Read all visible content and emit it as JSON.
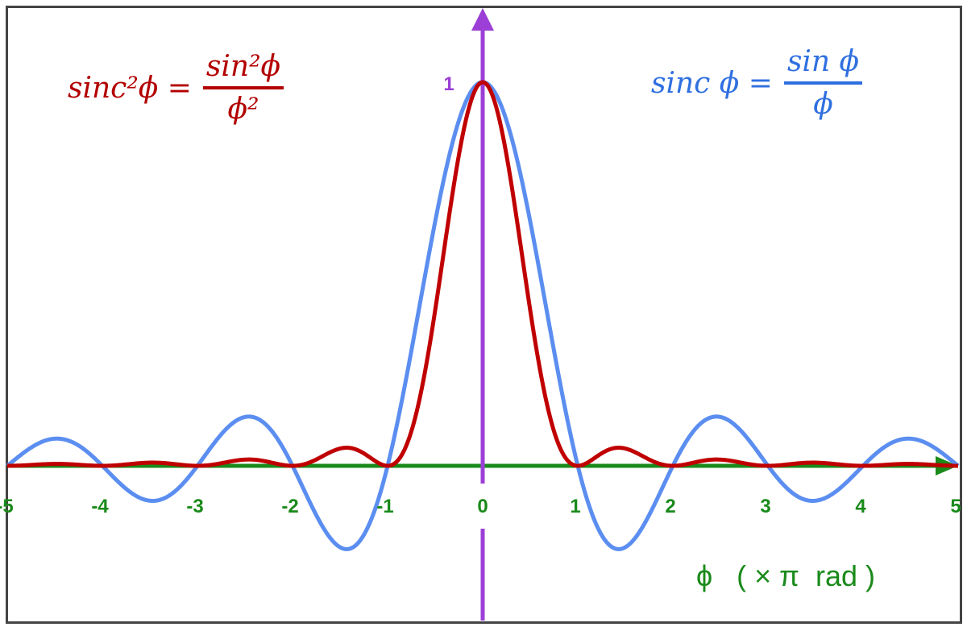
{
  "chart_data": {
    "type": "line",
    "title": "",
    "xlabel": "ϕ   ( × π  rad )",
    "ylabel": "",
    "xlim": [
      -5,
      5
    ],
    "ylim": [
      -0.25,
      1.0
    ],
    "x_ticks": [
      "-5",
      "-4",
      "-3",
      "-2",
      "-1",
      "0",
      "1",
      "2",
      "3",
      "4",
      "5"
    ],
    "y_ticks": [
      "1"
    ],
    "grid": false,
    "series": [
      {
        "name": "sinc ϕ = sin ϕ / ϕ",
        "function": "sin(πx)/(πx)",
        "color": "#5b8ef0"
      },
      {
        "name": "sinc²ϕ = sin²ϕ / ϕ²",
        "function": "(sin(πx)/(πx))^2",
        "color": "#c00000"
      }
    ],
    "colors": {
      "x_axis": "#1a8a1a",
      "y_axis": "#9b3fd6",
      "frame": "#444444"
    }
  },
  "legend": {
    "sinc2": {
      "lhs": "sinc²ϕ =",
      "num": "sin²ϕ",
      "den": "ϕ²"
    },
    "sinc": {
      "lhs": "sinc ϕ =",
      "num": "sin ϕ",
      "den": "ϕ"
    }
  }
}
